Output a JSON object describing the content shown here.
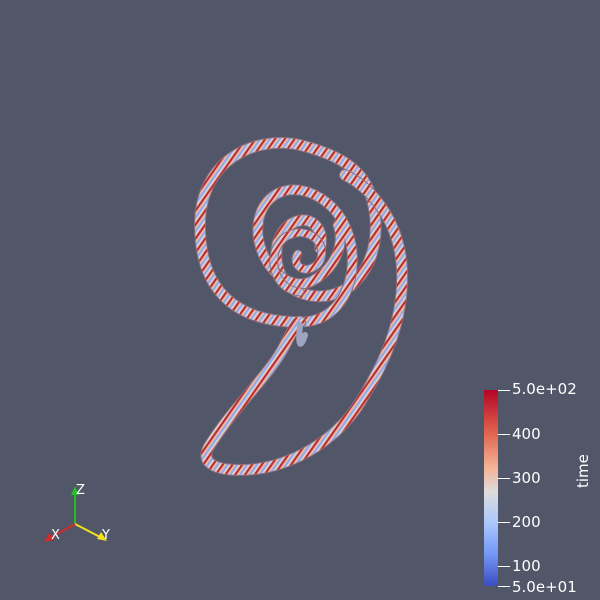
{
  "viewport": {
    "background": "#525669",
    "object": "streamtube-spiral"
  },
  "colorbar": {
    "title": "time",
    "labels": [
      "5.0e+02",
      "400",
      "300",
      "200",
      "100",
      "5.0e+01"
    ],
    "range": [
      50,
      500
    ],
    "colormap": [
      "#3b4cc0",
      "#dddcdc",
      "#b40426"
    ]
  },
  "axes": {
    "x_label": "X",
    "y_label": "Y",
    "z_label": "Z",
    "x_color": "#d22b2b",
    "y_color": "#f0e020",
    "z_color": "#22c022"
  }
}
